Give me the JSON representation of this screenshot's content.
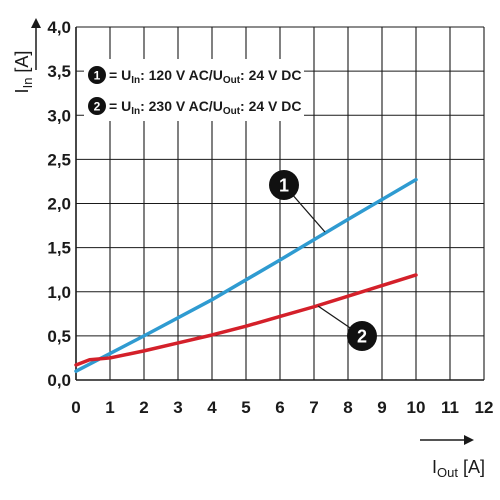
{
  "chart_data": {
    "type": "line",
    "xlabel": "I_Out [A]",
    "ylabel": "I_In [A]",
    "xlim": [
      0,
      12
    ],
    "ylim": [
      0,
      4.0
    ],
    "x_ticks": [
      "0",
      "1",
      "2",
      "3",
      "4",
      "5",
      "6",
      "7",
      "8",
      "9",
      "10",
      "11",
      "12"
    ],
    "y_ticks": [
      "0,0",
      "0,5",
      "1,0",
      "1,5",
      "2,0",
      "2,5",
      "3,0",
      "3,5",
      "4,0"
    ],
    "grid": true,
    "legend_position": "top-left",
    "series": [
      {
        "marker": "1",
        "legend": {
          "prefix": "= U",
          "sub1": "In",
          "mid": ": 120 V AC/U",
          "sub2": "Out",
          "suffix": ": 24 V DC"
        },
        "color": "#2f9bd1",
        "x": [
          0,
          2,
          4,
          6,
          8,
          10
        ],
        "y": [
          0.1,
          0.5,
          0.91,
          1.36,
          1.82,
          2.27
        ]
      },
      {
        "marker": "2",
        "legend": {
          "prefix": "= U",
          "sub1": "In",
          "mid": ": 230 V AC/U",
          "sub2": "Out",
          "suffix": ": 24 V DC"
        },
        "color": "#d4202a",
        "x": [
          0,
          0.4,
          1,
          2,
          3,
          4,
          5,
          6,
          7,
          8,
          9,
          10
        ],
        "y": [
          0.17,
          0.23,
          0.25,
          0.33,
          0.42,
          0.51,
          0.61,
          0.72,
          0.83,
          0.95,
          1.07,
          1.19
        ]
      }
    ]
  }
}
